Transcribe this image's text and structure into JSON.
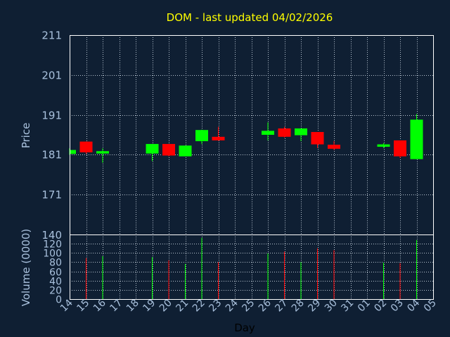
{
  "chart_data": {
    "type": "candlestick",
    "title": "DOM - last updated 04/02/2026",
    "ylabel": "Price",
    "volume_label": "Volume (0000)",
    "xlabel": "Day",
    "price_range": [
      161,
      211
    ],
    "price_ticks": [
      211,
      201,
      191,
      181,
      171
    ],
    "price_bottom_label": "140",
    "volume_range": [
      0,
      140
    ],
    "volume_ticks": [
      120,
      100,
      80,
      60,
      40,
      20,
      0
    ],
    "x_tick_labels": [
      "14",
      "15",
      "16",
      "17",
      "18",
      "19",
      "20",
      "21",
      "22",
      "23",
      "24",
      "25",
      "26",
      "27",
      "28",
      "29",
      "30",
      "31",
      "01",
      "02",
      "03",
      "04",
      "05"
    ],
    "grid": true,
    "up_color": "#00ff00",
    "down_color": "#ff0000",
    "candles": [
      {
        "x": 14,
        "open": 181.2,
        "high": 182.6,
        "low": 181.0,
        "close": 182.2,
        "volume": 0
      },
      {
        "x": 15,
        "open": 184.3,
        "high": 184.3,
        "low": 181.2,
        "close": 181.6,
        "volume": 89
      },
      {
        "x": 16,
        "open": 181.3,
        "high": 182.6,
        "low": 179.0,
        "close": 181.9,
        "volume": 93
      },
      {
        "x": 19,
        "open": 181.3,
        "high": 183.7,
        "low": 179.4,
        "close": 183.7,
        "volume": 91
      },
      {
        "x": 20,
        "open": 183.7,
        "high": 183.7,
        "low": 180.6,
        "close": 180.8,
        "volume": 84
      },
      {
        "x": 21,
        "open": 180.6,
        "high": 183.3,
        "low": 180.6,
        "close": 183.3,
        "volume": 76
      },
      {
        "x": 22,
        "open": 184.4,
        "high": 187.3,
        "low": 183.7,
        "close": 187.2,
        "volume": 133
      },
      {
        "x": 23,
        "open": 185.5,
        "high": 188.0,
        "low": 184.5,
        "close": 184.6,
        "volume": 80
      },
      {
        "x": 26,
        "open": 186.0,
        "high": 189.1,
        "low": 184.6,
        "close": 187.0,
        "volume": 99
      },
      {
        "x": 27,
        "open": 187.6,
        "high": 188.0,
        "low": 185.3,
        "close": 185.5,
        "volume": 103
      },
      {
        "x": 28,
        "open": 185.9,
        "high": 187.6,
        "low": 184.4,
        "close": 187.6,
        "volume": 80
      },
      {
        "x": 29,
        "open": 186.7,
        "high": 186.7,
        "low": 182.7,
        "close": 183.6,
        "volume": 110
      },
      {
        "x": 30,
        "open": 183.5,
        "high": 184.4,
        "low": 182.2,
        "close": 182.5,
        "volume": 106
      },
      {
        "x": "02",
        "open": 183.0,
        "high": 183.9,
        "low": 182.7,
        "close": 183.6,
        "volume": 79
      },
      {
        "x": "03",
        "open": 184.6,
        "high": 184.6,
        "low": 180.2,
        "close": 180.6,
        "volume": 78
      },
      {
        "x": "04",
        "open": 179.9,
        "high": 191.2,
        "low": 179.9,
        "close": 189.8,
        "volume": 128
      }
    ]
  }
}
